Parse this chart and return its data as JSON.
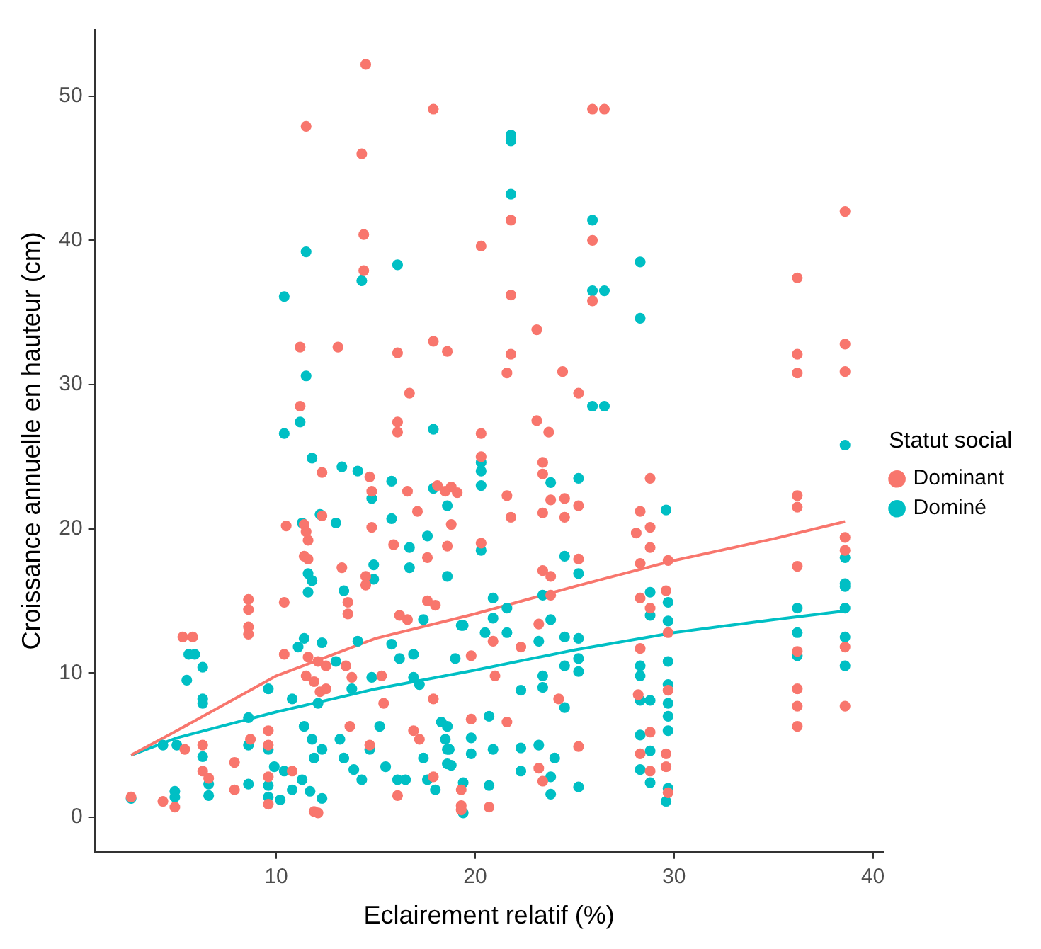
{
  "chart_data": {
    "type": "scatter",
    "xlabel": "Eclairement relatif (%)",
    "ylabel": "Croissance annuelle en hauteur (cm)",
    "legend_title": "Statut social",
    "legend": "right",
    "marker": "circle",
    "grid": false,
    "xlim": [
      0.9,
      40.5
    ],
    "xticks": [
      10,
      20,
      30,
      40
    ],
    "ylim": [
      -2.4,
      54.6
    ],
    "yticks": [
      0,
      10,
      20,
      30,
      40,
      50
    ],
    "series": [
      {
        "name": "Dominant",
        "color": "#f8766d",
        "x": [
          11.5,
          14.5,
          14.3,
          17.9,
          14.4,
          14.4,
          11.2,
          13.1,
          16.1,
          17.9,
          18.6,
          11.2,
          16.7,
          16.1,
          16.1,
          25.9,
          26.5,
          21.8,
          25.9,
          20.3,
          38.6,
          36.2,
          21.8,
          25.9,
          23.1,
          21.8,
          21.6,
          24.4,
          25.2,
          36.2,
          36.2,
          38.6,
          38.6,
          23.1,
          23.7,
          20.3,
          20.3,
          23.4,
          23.4,
          28.8,
          21.6,
          21.8,
          23.8,
          24.5,
          23.4,
          24.5,
          25.2,
          28.3,
          28.8,
          28.1,
          36.2,
          36.2,
          38.6,
          38.6,
          36.2,
          20.3,
          28.8,
          25.2,
          23.4,
          23.8,
          29.7,
          28.3,
          29.6,
          28.3,
          28.8,
          23.8,
          23.2,
          20.9,
          22.3,
          28.3,
          29.7,
          38.6,
          36.2,
          19.8,
          21.0,
          28.2,
          29.7,
          36.2,
          36.2,
          38.6,
          36.2,
          24.2,
          21.6,
          19.8,
          28.8,
          28.3,
          28.8,
          29.6,
          29.6,
          25.2,
          23.2,
          23.4,
          19.3,
          19.3,
          20.7,
          29.7,
          18.8,
          19.1,
          18.8,
          5.3,
          5.8,
          8.6,
          8.6,
          8.6,
          8.6,
          10.4,
          10.5,
          11.4,
          11.5,
          11.6,
          11.4,
          11.6,
          12.3,
          12.3,
          13.3,
          14.7,
          14.8,
          14.8,
          15.9,
          16.6,
          17.1,
          18.1,
          18.5,
          17.6,
          18.6,
          14.5,
          14.5,
          16.2,
          16.6,
          17.6,
          18.0,
          13.6,
          13.6,
          10.4,
          11.6,
          12.1,
          12.5,
          11.5,
          11.9,
          12.2,
          12.5,
          13.5,
          13.8,
          6.3,
          5.4,
          6.3,
          6.6,
          7.9,
          7.9,
          8.7,
          9.6,
          9.6,
          9.6,
          9.6,
          2.7,
          4.3,
          4.9,
          11.9,
          12.1,
          10.8,
          13.7,
          14.7,
          16.1,
          16.9,
          17.2,
          17.9,
          17.9,
          19.3,
          15.3,
          15.4
        ],
        "values": [
          47.9,
          52.2,
          46.0,
          49.1,
          40.4,
          37.9,
          32.6,
          32.6,
          32.2,
          33.0,
          32.3,
          28.5,
          29.4,
          27.4,
          26.7,
          49.1,
          49.1,
          41.4,
          40.0,
          39.6,
          42.0,
          37.4,
          36.2,
          35.8,
          33.8,
          32.1,
          30.8,
          30.9,
          29.4,
          32.1,
          30.8,
          32.8,
          30.9,
          27.5,
          26.7,
          26.6,
          25.0,
          24.6,
          23.8,
          23.5,
          22.3,
          20.8,
          22.0,
          22.1,
          21.1,
          20.8,
          21.6,
          21.2,
          20.1,
          19.7,
          22.3,
          21.5,
          19.4,
          18.5,
          17.4,
          19.0,
          18.7,
          17.9,
          17.1,
          16.7,
          17.8,
          17.6,
          15.7,
          15.2,
          14.5,
          15.4,
          13.4,
          12.2,
          11.8,
          11.7,
          12.8,
          11.8,
          11.5,
          11.2,
          9.8,
          8.5,
          8.8,
          8.9,
          7.7,
          7.7,
          6.3,
          8.2,
          6.6,
          6.8,
          5.9,
          4.4,
          3.2,
          4.4,
          3.5,
          4.9,
          3.4,
          2.5,
          1.9,
          0.8,
          0.7,
          1.7,
          22.9,
          22.5,
          20.3,
          12.5,
          12.5,
          15.1,
          14.4,
          13.2,
          12.7,
          14.9,
          20.2,
          20.3,
          19.8,
          19.2,
          18.1,
          17.9,
          20.9,
          23.9,
          17.3,
          23.6,
          22.6,
          20.1,
          18.9,
          22.6,
          21.2,
          23.0,
          22.6,
          18.0,
          18.8,
          16.7,
          16.1,
          14.0,
          13.7,
          15.0,
          14.7,
          14.9,
          14.1,
          11.3,
          11.1,
          10.8,
          10.5,
          9.8,
          9.4,
          8.7,
          8.9,
          10.5,
          9.7,
          5.0,
          4.7,
          3.2,
          2.7,
          3.8,
          1.9,
          5.4,
          6.0,
          5.0,
          2.8,
          0.9,
          1.4,
          1.1,
          0.7,
          0.4,
          0.3,
          3.2,
          6.3,
          5.0,
          1.5,
          6.0,
          5.4,
          8.2,
          2.8,
          0.5,
          9.8,
          7.9
        ]
      },
      {
        "name": "Dominé",
        "color": "#00bfc4",
        "x": [
          11.5,
          10.4,
          14.3,
          16.1,
          11.5,
          11.2,
          10.4,
          17.9,
          11.8,
          21.8,
          21.8,
          21.8,
          25.9,
          28.3,
          25.9,
          26.5,
          28.3,
          25.9,
          26.5,
          38.6,
          20.3,
          20.3,
          20.3,
          25.2,
          23.8,
          29.6,
          20.3,
          24.5,
          25.2,
          38.6,
          38.6,
          38.6,
          36.2,
          38.6,
          28.8,
          28.8,
          29.7,
          29.7,
          23.4,
          23.8,
          20.9,
          21.6,
          19.4,
          20.9,
          20.5,
          21.6,
          23.2,
          24.5,
          25.2,
          36.2,
          38.6,
          36.2,
          25.2,
          25.2,
          28.3,
          28.3,
          29.7,
          38.6,
          19.0,
          23.4,
          23.4,
          24.5,
          22.3,
          29.7,
          29.7,
          29.7,
          29.7,
          28.3,
          28.8,
          28.3,
          28.3,
          28.8,
          28.8,
          29.6,
          29.7,
          25.2,
          23.8,
          23.8,
          22.3,
          22.3,
          23.2,
          24.0,
          24.5,
          20.7,
          20.9,
          20.7,
          19.8,
          19.8,
          18.6,
          18.6,
          18.6,
          19.4,
          19.4,
          13.3,
          14.1,
          15.8,
          14.8,
          17.9,
          18.6,
          13.0,
          11.3,
          12.2,
          15.8,
          16.7,
          17.6,
          11.6,
          11.8,
          11.6,
          14.9,
          14.9,
          13.4,
          16.7,
          18.6,
          19.3,
          11.4,
          11.1,
          12.3,
          13.0,
          14.1,
          15.8,
          16.2,
          16.9,
          17.4,
          16.9,
          17.2,
          9.6,
          10.8,
          12.1,
          13.8,
          14.8,
          5.6,
          5.9,
          5.5,
          6.3,
          6.3,
          6.3,
          8.6,
          4.3,
          5.0,
          6.3,
          6.6,
          6.6,
          4.9,
          4.9,
          2.7,
          8.6,
          8.6,
          9.6,
          9.9,
          9.6,
          9.6,
          10.4,
          10.8,
          10.2,
          11.4,
          11.8,
          12.3,
          11.9,
          11.3,
          11.7,
          12.3,
          13.2,
          13.4,
          13.9,
          14.3,
          14.7,
          15.2,
          15.5,
          16.1,
          16.5,
          17.4,
          17.6,
          18.3,
          18.5,
          18.7,
          18.8,
          18.0
        ],
        "values": [
          39.2,
          36.1,
          37.2,
          38.3,
          30.6,
          27.4,
          26.6,
          26.9,
          24.9,
          47.3,
          46.9,
          43.2,
          41.4,
          38.5,
          36.5,
          36.5,
          34.6,
          28.5,
          28.5,
          25.8,
          24.6,
          24.0,
          23.0,
          23.5,
          23.2,
          21.3,
          18.5,
          18.1,
          16.9,
          18.0,
          16.2,
          16.0,
          14.5,
          14.5,
          15.6,
          14.0,
          14.9,
          13.6,
          15.4,
          13.7,
          15.2,
          14.5,
          13.3,
          13.8,
          12.8,
          12.8,
          12.2,
          12.5,
          12.4,
          12.8,
          12.5,
          11.2,
          11.0,
          10.1,
          10.5,
          9.8,
          10.8,
          10.5,
          11.0,
          9.8,
          9.0,
          10.5,
          8.8,
          9.2,
          7.9,
          7.0,
          6.0,
          8.1,
          8.1,
          5.7,
          3.3,
          4.6,
          2.4,
          1.1,
          2.0,
          2.1,
          2.8,
          1.6,
          4.8,
          3.2,
          5.0,
          4.1,
          7.6,
          7.0,
          4.7,
          2.2,
          5.5,
          4.4,
          6.3,
          4.7,
          3.7,
          2.4,
          0.3,
          24.3,
          24.0,
          23.3,
          22.1,
          22.8,
          21.6,
          20.4,
          20.4,
          21.0,
          20.7,
          18.7,
          19.5,
          16.9,
          16.4,
          15.6,
          17.5,
          16.5,
          15.7,
          17.3,
          16.7,
          13.3,
          12.4,
          11.8,
          12.1,
          10.8,
          12.2,
          12.0,
          11.0,
          11.3,
          13.7,
          9.7,
          9.2,
          8.9,
          8.2,
          7.9,
          8.9,
          9.7,
          11.3,
          11.3,
          9.5,
          10.4,
          8.2,
          7.9,
          6.9,
          5.0,
          5.0,
          4.2,
          2.3,
          1.5,
          1.8,
          1.4,
          1.3,
          5.0,
          2.3,
          4.7,
          3.5,
          2.2,
          1.4,
          3.2,
          1.9,
          1.2,
          6.3,
          5.4,
          4.7,
          4.1,
          2.6,
          1.8,
          1.3,
          5.4,
          4.1,
          3.3,
          2.6,
          4.7,
          6.3,
          3.5,
          2.6,
          2.6,
          4.1,
          2.6,
          6.6,
          5.4,
          4.7,
          3.6,
          1.9
        ]
      },
      {
        "type": "line",
        "marker": "none",
        "color": "#f8766d",
        "x": [
          2.7,
          5,
          10,
          15,
          20,
          25,
          30,
          35,
          38.6
        ],
        "values": [
          4.3,
          6.0,
          9.8,
          12.4,
          14.1,
          16.0,
          17.8,
          19.3,
          20.5
        ]
      },
      {
        "type": "line",
        "marker": "none",
        "color": "#00bfc4",
        "x": [
          2.7,
          5,
          10,
          15,
          20,
          25,
          30,
          35,
          38.6
        ],
        "values": [
          4.3,
          5.5,
          7.3,
          8.9,
          10.2,
          11.6,
          12.8,
          13.7,
          14.3
        ]
      }
    ]
  }
}
